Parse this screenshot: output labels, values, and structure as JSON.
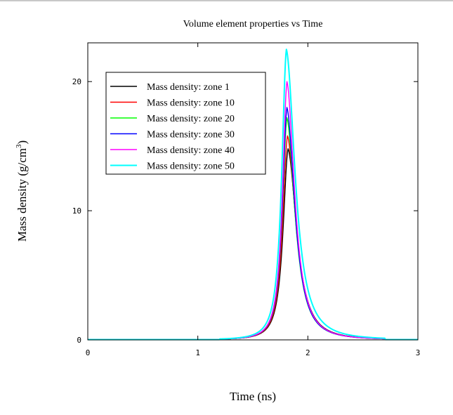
{
  "chart_data": {
    "type": "line",
    "title": "Volume element properties vs Time",
    "xlabel": "Time (ns)",
    "ylabel": "Mass density (g/cm",
    "ylabel_superscript": "3",
    "ylabel_suffix": ")",
    "xlim": [
      0,
      3
    ],
    "ylim": [
      0,
      23
    ],
    "xticks": [
      0,
      1,
      2,
      3
    ],
    "xtick_labels": [
      "0",
      "1",
      "2",
      "3"
    ],
    "yticks": [
      0,
      10,
      20
    ],
    "ytick_labels": [
      "0",
      "10",
      "20"
    ],
    "grid": false,
    "legend_position": "upper-left",
    "series": [
      {
        "name": "Mass density: zone 1",
        "color": "#000000",
        "peak_x": 1.82,
        "peak_y": 14.8,
        "rise_width": 0.075,
        "fall_width": 0.13
      },
      {
        "name": "Mass density: zone 10",
        "color": "#ff0000",
        "peak_x": 1.815,
        "peak_y": 15.8,
        "rise_width": 0.073,
        "fall_width": 0.125
      },
      {
        "name": "Mass density: zone 20",
        "color": "#00ff00",
        "peak_x": 1.81,
        "peak_y": 17.2,
        "rise_width": 0.071,
        "fall_width": 0.12
      },
      {
        "name": "Mass density: zone 30",
        "color": "#0000ff",
        "peak_x": 1.81,
        "peak_y": 18.0,
        "rise_width": 0.07,
        "fall_width": 0.118
      },
      {
        "name": "Mass density: zone 40",
        "color": "#ff00ff",
        "peak_x": 1.81,
        "peak_y": 20.0,
        "rise_width": 0.068,
        "fall_width": 0.115
      },
      {
        "name": "Mass density: zone 50",
        "color": "#00ffff",
        "peak_x": 1.805,
        "peak_y": 22.5,
        "rise_width": 0.07,
        "fall_width": 0.13
      }
    ]
  }
}
